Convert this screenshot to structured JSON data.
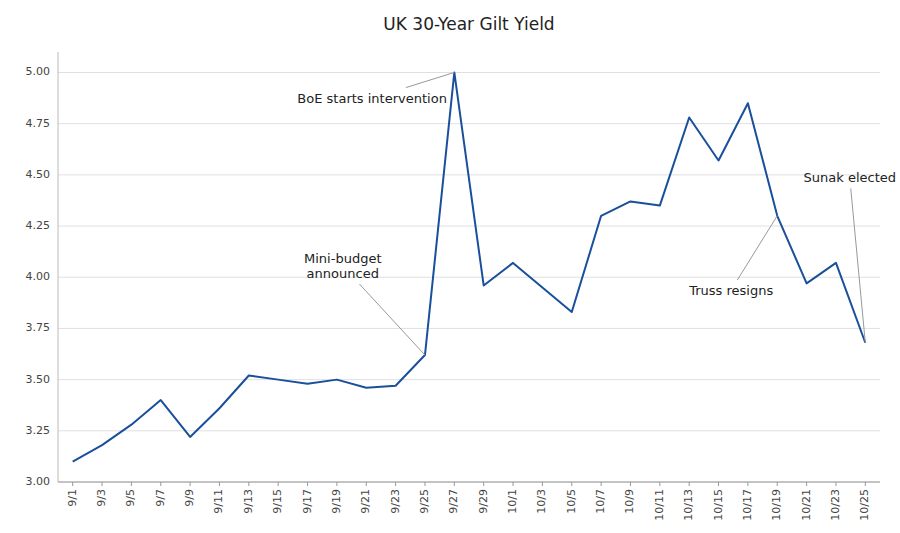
{
  "chart_data": {
    "type": "line",
    "title": "UK 30-Year Gilt Yield",
    "categories": [
      "9/1",
      "9/3",
      "9/5",
      "9/7",
      "9/9",
      "9/11",
      "9/13",
      "9/15",
      "9/17",
      "9/19",
      "9/21",
      "9/23",
      "9/25",
      "9/27",
      "9/29",
      "10/1",
      "10/3",
      "10/5",
      "10/7",
      "10/9",
      "10/11",
      "10/13",
      "10/15",
      "10/17",
      "10/19",
      "10/21",
      "10/23",
      "10/25"
    ],
    "values": [
      3.1,
      3.18,
      3.28,
      3.4,
      3.22,
      3.36,
      3.52,
      3.5,
      3.48,
      3.5,
      3.46,
      3.47,
      3.62,
      5.0,
      3.96,
      4.07,
      3.95,
      3.83,
      4.3,
      4.37,
      4.35,
      4.78,
      4.57,
      4.85,
      4.3,
      3.97,
      4.07,
      3.68
    ],
    "color": "#1a4f9c",
    "ylim": [
      3.0,
      5.1
    ],
    "yticks": [
      {
        "value": 3.0,
        "label": "3.00"
      },
      3.25,
      {
        "value": 3.5,
        "label": "3.50"
      },
      3.75,
      {
        "value": 4.0,
        "label": "4.00"
      },
      4.25,
      {
        "value": 4.5,
        "label": "4.50"
      },
      4.75,
      {
        "value": 5.0,
        "label": "5.00"
      }
    ],
    "grid": true,
    "annotations": [
      {
        "text": "Mini-budget\nannounced",
        "x": "9/25",
        "y": 3.62
      },
      {
        "text": "BoE starts intervention",
        "x": "9/27",
        "y": 5.0
      },
      {
        "text": "Truss resigns",
        "x": "10/19",
        "y": 4.3
      },
      {
        "text": "Sunak elected",
        "x": "10/25",
        "y": 3.68
      }
    ]
  }
}
